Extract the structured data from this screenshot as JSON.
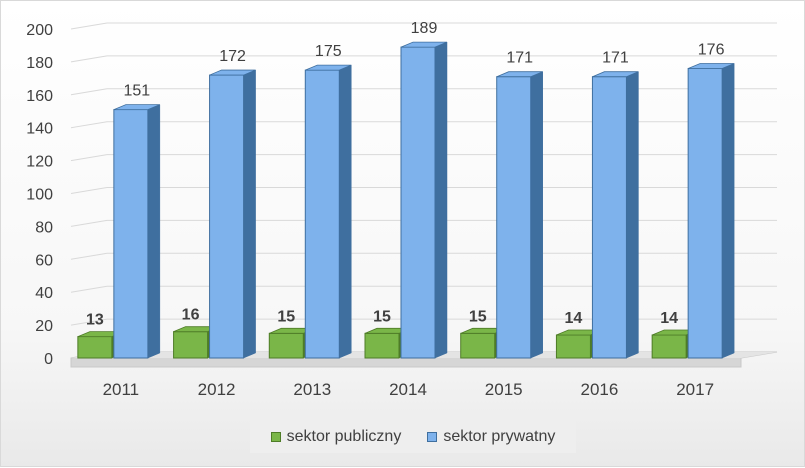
{
  "chart_data": {
    "type": "bar",
    "categories": [
      "2011",
      "2012",
      "2013",
      "2014",
      "2015",
      "2016",
      "2017"
    ],
    "series": [
      {
        "name": "sektor publiczny",
        "values": [
          13,
          16,
          15,
          15,
          15,
          14,
          14
        ],
        "color": "#7ab648",
        "shadow": "#4e7c27"
      },
      {
        "name": "sektor prywatny",
        "values": [
          151,
          172,
          175,
          189,
          171,
          171,
          176
        ],
        "color": "#7eb2ec",
        "shadow": "#3f6f9f"
      }
    ],
    "yticks": [
      "0",
      "20",
      "40",
      "60",
      "80",
      "100",
      "120",
      "140",
      "160",
      "180",
      "200"
    ],
    "ylim": [
      0,
      200
    ],
    "grid": true,
    "legend_position": "bottom",
    "title": "",
    "xlabel": "",
    "ylabel": ""
  }
}
